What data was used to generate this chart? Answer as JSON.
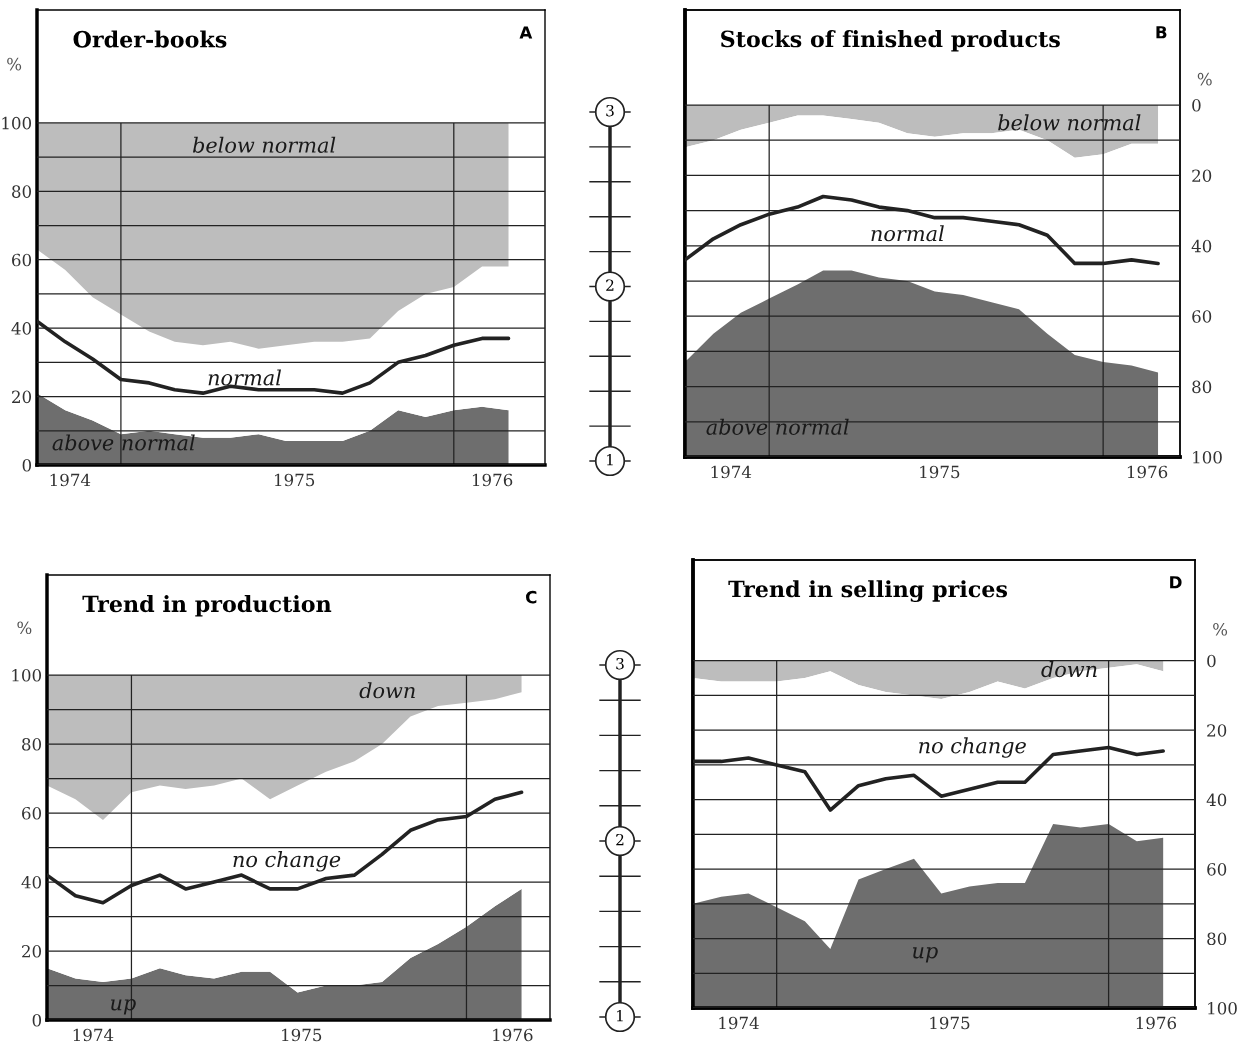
{
  "chart_data": [
    {
      "type": "area",
      "title": "Order-books",
      "ylabel": "%",
      "annotations": [
        "A"
      ],
      "stacked": true,
      "grid": "y",
      "x": [
        "1974-10",
        "1974-11",
        "1974-12",
        "1975-01",
        "1975-02",
        "1975-03",
        "1975-04",
        "1975-05",
        "1975-06",
        "1975-07",
        "1975-08",
        "1975-09",
        "1975-10",
        "1975-11",
        "1975-12",
        "1976-01",
        "1976-02",
        "1976-03"
      ],
      "xlim": [
        "1974-10-01",
        "1976-04-10"
      ],
      "xticks": [
        {
          "value": "1974-11-06",
          "label": "1974"
        },
        {
          "value": "1975-07-10",
          "label": "1975"
        },
        {
          "value": "1976-02-12",
          "label": "1976"
        }
      ],
      "ylim": [
        0,
        133
      ],
      "yticks": [
        0,
        {
          "value": 10,
          "label": null
        },
        20,
        {
          "value": 30,
          "label": null
        },
        40,
        {
          "value": 50,
          "label": null
        },
        60,
        {
          "value": 70,
          "label": null
        },
        80,
        {
          "value": 90,
          "label": null
        },
        100
      ],
      "ref_lines": [
        {
          "axis": "x",
          "value": "1975-01"
        },
        {
          "axis": "x",
          "value": "1976-01"
        }
      ],
      "series": [
        {
          "name": "above normal",
          "color": "#6e6e6e",
          "values": [
            21,
            16,
            13,
            9,
            10,
            9,
            8,
            8,
            9,
            7,
            7,
            7,
            10,
            16,
            14,
            16,
            17,
            16
          ]
        },
        {
          "name": "normal",
          "color": "#ffffff",
          "values": [
            42,
            41,
            36,
            35,
            29,
            27,
            27,
            28,
            25,
            28,
            29,
            29,
            27,
            29,
            36,
            36,
            41,
            42
          ]
        },
        {
          "name": "below normal",
          "color": "#bdbdbd",
          "values": [
            37,
            43,
            51,
            56,
            61,
            64,
            65,
            64,
            66,
            65,
            64,
            64,
            63,
            55,
            50,
            48,
            42,
            42
          ]
        },
        {
          "type": "line",
          "color": "#222222",
          "values": [
            42,
            36,
            31,
            25,
            24,
            22,
            21,
            23,
            22,
            22,
            22,
            21,
            24,
            30,
            32,
            35,
            37,
            37
          ]
        }
      ]
    },
    {
      "type": "other",
      "annotations": [
        "3",
        "2",
        "1"
      ]
    },
    {
      "type": "area",
      "title": "Stocks of finished products",
      "y2label": "%",
      "annotations": [
        "B"
      ],
      "stacked": true,
      "grid": "y",
      "x": [
        "1974-10",
        "1974-11",
        "1974-12",
        "1975-01",
        "1975-02",
        "1975-03",
        "1975-04",
        "1975-05",
        "1975-06",
        "1975-07",
        "1975-08",
        "1975-09",
        "1975-10",
        "1975-11",
        "1975-12",
        "1976-01",
        "1976-02",
        "1976-03"
      ],
      "xlim": [
        "1974-10-01",
        "1976-03-25"
      ],
      "xticks": [
        {
          "value": "1974-11-20",
          "label": "1974"
        },
        {
          "value": "1975-07-06",
          "label": "1975"
        },
        {
          "value": "1976-02-18",
          "label": "1976"
        }
      ],
      "y2lim": [
        100,
        -27
      ],
      "y2ticks": [
        0,
        {
          "value": 10,
          "label": null
        },
        20,
        {
          "value": 30,
          "label": null
        },
        40,
        {
          "value": 50,
          "label": null
        },
        60,
        {
          "value": 70,
          "label": null
        },
        80,
        {
          "value": 90,
          "label": null
        },
        100
      ],
      "ref_lines": [
        {
          "axis": "x",
          "value": "1975-01"
        },
        {
          "axis": "x",
          "value": "1976-01"
        }
      ],
      "series": [
        {
          "name": "below normal",
          "color": "#bdbdbd",
          "axis": "y2",
          "values": [
            12,
            10,
            7,
            5,
            3,
            3,
            4,
            5,
            8,
            9,
            8,
            8,
            7,
            10,
            15,
            14,
            11,
            11
          ]
        },
        {
          "name": "normal",
          "color": "#ffffff",
          "axis": "y2",
          "values": [
            61,
            55,
            52,
            50,
            48,
            44,
            43,
            44,
            42,
            44,
            46,
            48,
            51,
            55,
            56,
            59,
            63,
            65
          ]
        },
        {
          "name": "above normal",
          "color": "#6e6e6e",
          "axis": "y2",
          "values": [
            27,
            35,
            41,
            45,
            49,
            53,
            53,
            51,
            50,
            47,
            46,
            44,
            42,
            35,
            29,
            27,
            26,
            24
          ]
        },
        {
          "type": "line",
          "color": "#222222",
          "axis": "y2",
          "values": [
            44,
            38,
            34,
            31,
            29,
            26,
            27,
            29,
            30,
            32,
            32,
            33,
            34,
            37,
            45,
            45,
            44,
            45
          ]
        }
      ]
    },
    {
      "type": "area",
      "title": "Trend in production",
      "ylabel": "%",
      "annotations": [
        "C"
      ],
      "stacked": true,
      "grid": "y",
      "x": [
        "1974-10",
        "1974-11",
        "1974-12",
        "1975-01",
        "1975-02",
        "1975-03",
        "1975-04",
        "1975-05",
        "1975-06",
        "1975-07",
        "1975-08",
        "1975-09",
        "1975-10",
        "1975-11",
        "1975-12",
        "1976-01",
        "1976-02",
        "1976-03"
      ],
      "xlim": [
        "1974-10-01",
        "1976-04-01"
      ],
      "xticks": [
        {
          "value": "1974-11-20",
          "label": "1974"
        },
        {
          "value": "1975-07-05",
          "label": "1975"
        },
        {
          "value": "1976-02-20",
          "label": "1976"
        }
      ],
      "ylim": [
        0,
        129
      ],
      "yticks": [
        0,
        {
          "value": 10,
          "label": null
        },
        20,
        {
          "value": 30,
          "label": null
        },
        40,
        {
          "value": 50,
          "label": null
        },
        60,
        {
          "value": 70,
          "label": null
        },
        80,
        {
          "value": 90,
          "label": null
        },
        100
      ],
      "ref_lines": [
        {
          "axis": "x",
          "value": "1975-01"
        },
        {
          "axis": "x",
          "value": "1976-01"
        }
      ],
      "series": [
        {
          "name": "up",
          "color": "#6e6e6e",
          "values": [
            15,
            12,
            11,
            12,
            15,
            13,
            12,
            14,
            14,
            8,
            10,
            10,
            11,
            18,
            22,
            27,
            33,
            38
          ]
        },
        {
          "name": "no change",
          "color": "#ffffff",
          "values": [
            53,
            52,
            47,
            54,
            53,
            54,
            56,
            56,
            50,
            60,
            62,
            65,
            69,
            70,
            69,
            65,
            60,
            57
          ]
        },
        {
          "name": "down",
          "color": "#bdbdbd",
          "values": [
            32,
            36,
            42,
            34,
            32,
            33,
            32,
            30,
            36,
            32,
            28,
            25,
            20,
            12,
            9,
            8,
            7,
            5
          ]
        },
        {
          "type": "line",
          "color": "#222222",
          "values": [
            42,
            36,
            34,
            39,
            42,
            38,
            40,
            42,
            38,
            38,
            41,
            42,
            48,
            55,
            58,
            59,
            64,
            66
          ]
        }
      ]
    },
    {
      "type": "other",
      "annotations": [
        "3",
        "2",
        "1"
      ]
    },
    {
      "type": "area",
      "title": "Trend in selling prices",
      "y2label": "%",
      "annotations": [
        "D"
      ],
      "stacked": true,
      "grid": "y",
      "x": [
        "1974-10",
        "1974-11",
        "1974-12",
        "1975-01",
        "1975-02",
        "1975-03",
        "1975-04",
        "1975-05",
        "1975-06",
        "1975-07",
        "1975-08",
        "1975-09",
        "1975-10",
        "1975-11",
        "1975-12",
        "1976-01",
        "1976-02",
        "1976-03"
      ],
      "xlim": [
        "1974-10-01",
        "1976-04-05"
      ],
      "xticks": [
        {
          "value": "1974-11-20",
          "label": "1974"
        },
        {
          "value": "1975-07-10",
          "label": "1975"
        },
        {
          "value": "1976-02-22",
          "label": "1976"
        }
      ],
      "y2lim": [
        100,
        -29
      ],
      "y2ticks": [
        0,
        {
          "value": 10,
          "label": null
        },
        20,
        {
          "value": 30,
          "label": null
        },
        40,
        {
          "value": 50,
          "label": null
        },
        60,
        {
          "value": 70,
          "label": null
        },
        80,
        {
          "value": 90,
          "label": null
        },
        100
      ],
      "ref_lines": [
        {
          "axis": "x",
          "value": "1975-01"
        },
        {
          "axis": "x",
          "value": "1976-01"
        }
      ],
      "series": [
        {
          "name": "down",
          "color": "#bdbdbd",
          "axis": "y2",
          "values": [
            5,
            6,
            6,
            6,
            5,
            3,
            7,
            9,
            10,
            11,
            9,
            6,
            8,
            5,
            3,
            2,
            1,
            3
          ]
        },
        {
          "name": "no change",
          "color": "#ffffff",
          "axis": "y2",
          "values": [
            65,
            62,
            61,
            65,
            70,
            80,
            56,
            51,
            47,
            56,
            56,
            58,
            56,
            42,
            45,
            45,
            51,
            48
          ]
        },
        {
          "name": "up",
          "color": "#6e6e6e",
          "axis": "y2",
          "values": [
            30,
            32,
            33,
            29,
            25,
            17,
            37,
            40,
            43,
            33,
            35,
            36,
            36,
            53,
            52,
            53,
            48,
            49
          ]
        },
        {
          "type": "line",
          "color": "#222222",
          "axis": "y2",
          "values": [
            29,
            29,
            28,
            30,
            32,
            43,
            36,
            34,
            33,
            39,
            37,
            35,
            35,
            27,
            26,
            25,
            27,
            26
          ]
        }
      ]
    }
  ]
}
